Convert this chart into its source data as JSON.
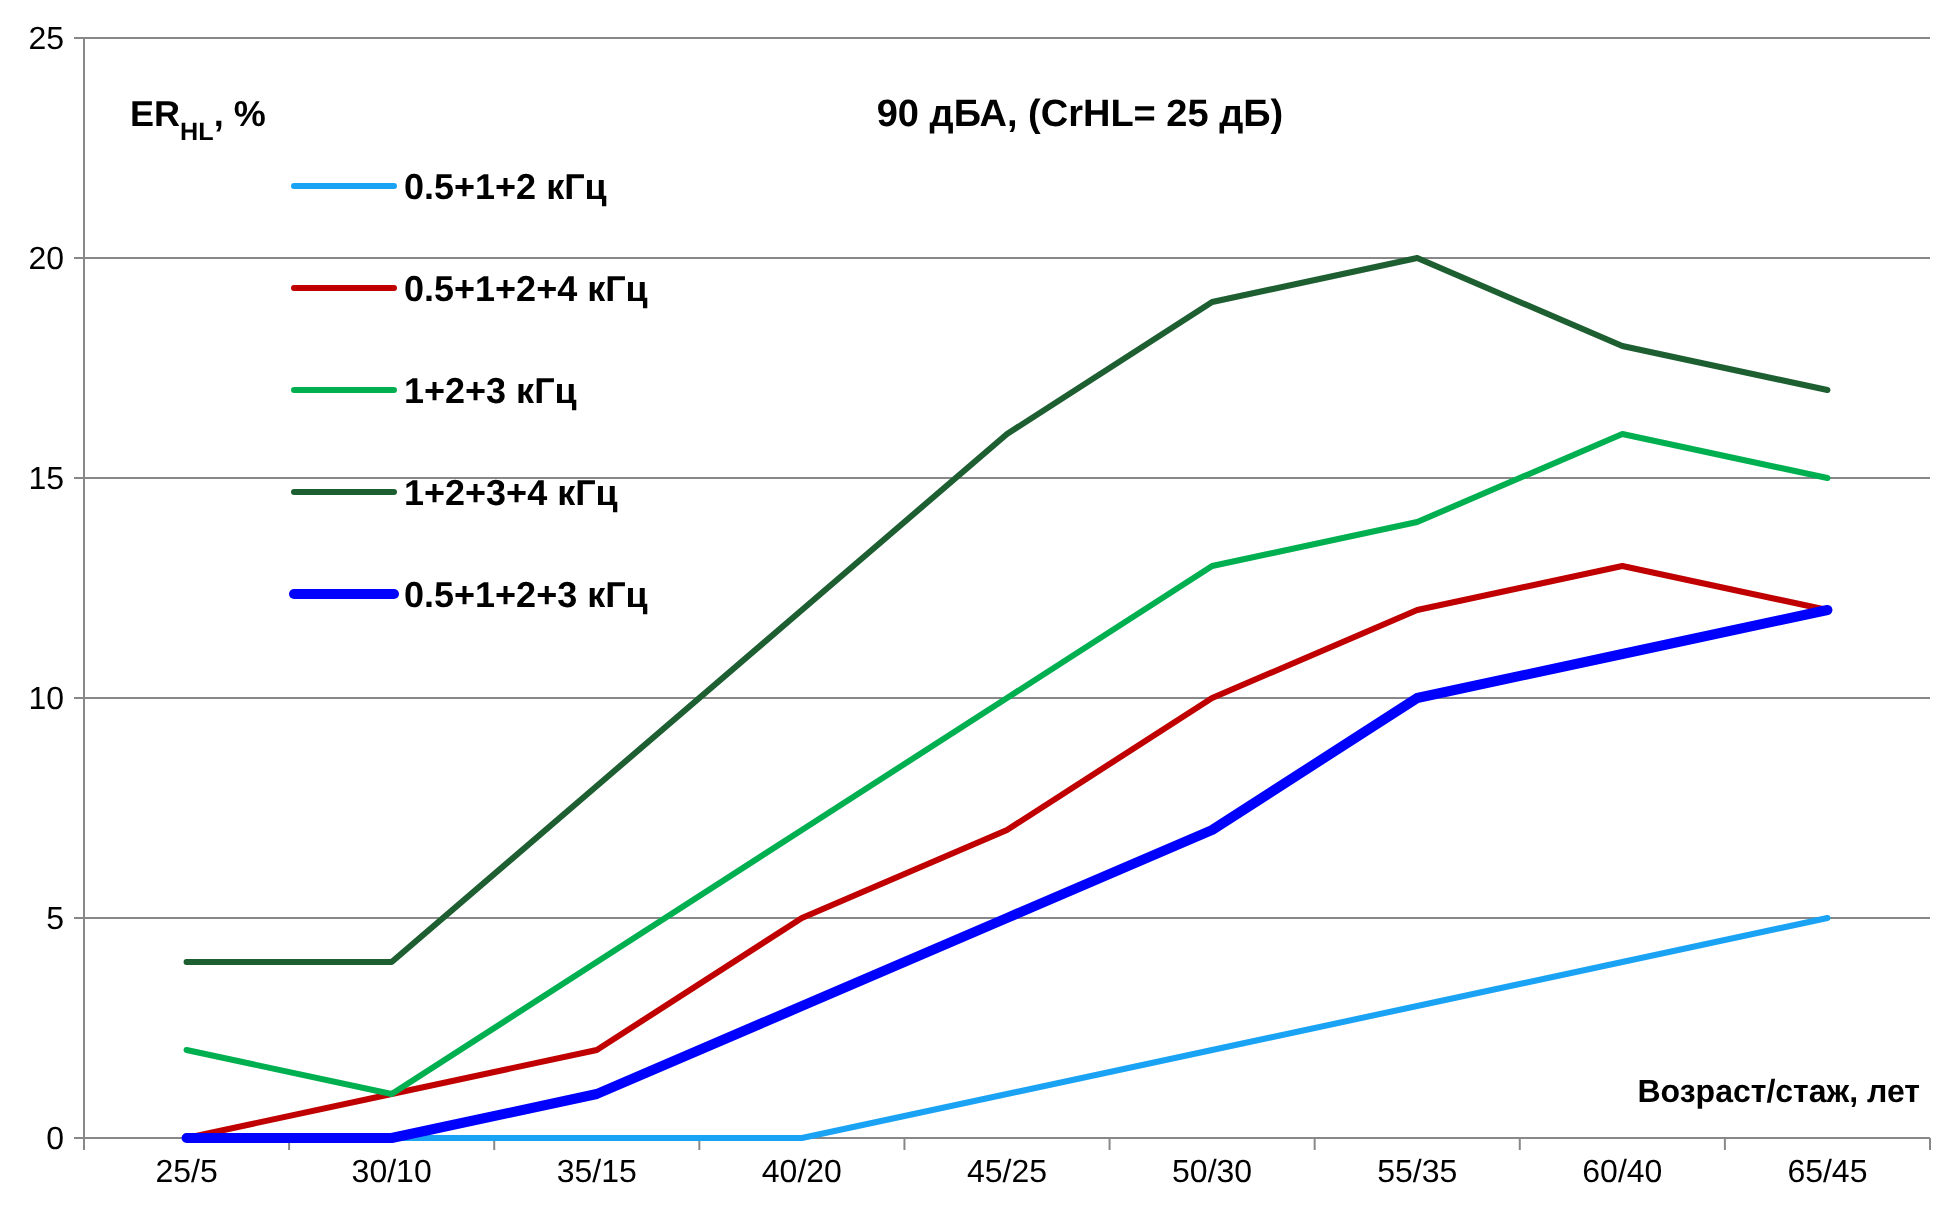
{
  "chart_data": {
    "type": "line",
    "title": "90 дБА,  (CrHL= 25 дБ)",
    "ylabel": "ER$_{HL}$, %",
    "xlabel": "Возраст/стаж, лет",
    "categories": [
      "25/5",
      "30/10",
      "35/15",
      "40/20",
      "45/25",
      "50/30",
      "55/35",
      "60/40",
      "65/45"
    ],
    "ylim": [
      0,
      25
    ],
    "yticks": [
      0,
      5,
      10,
      15,
      20,
      25
    ],
    "grid": "y",
    "legend": "top left",
    "marker": "none",
    "line_style": "solid",
    "series": [
      {
        "name": "0.5+1+2 кГц",
        "color": "#1aa3f5",
        "values": [
          0,
          0,
          0,
          0,
          1,
          2,
          3,
          4,
          5
        ]
      },
      {
        "name": "0.5+1+2+4 кГц",
        "color": "#c00000",
        "values": [
          0,
          1,
          2,
          5,
          7,
          10,
          12,
          13,
          12
        ]
      },
      {
        "name": "1+2+3 кГц",
        "color": "#00b050",
        "values": [
          2,
          1,
          4,
          7,
          10,
          13,
          14,
          16,
          15
        ]
      },
      {
        "name": "1+2+3+4 кГц",
        "color": "#1e5f32",
        "values": [
          4,
          4,
          8,
          12,
          16,
          19,
          20,
          18,
          17
        ]
      },
      {
        "name": "0.5+1+2+3 кГц",
        "color": "#0000ff",
        "values": [
          0,
          0,
          1,
          3,
          5,
          7,
          10,
          11,
          12
        ]
      }
    ]
  }
}
